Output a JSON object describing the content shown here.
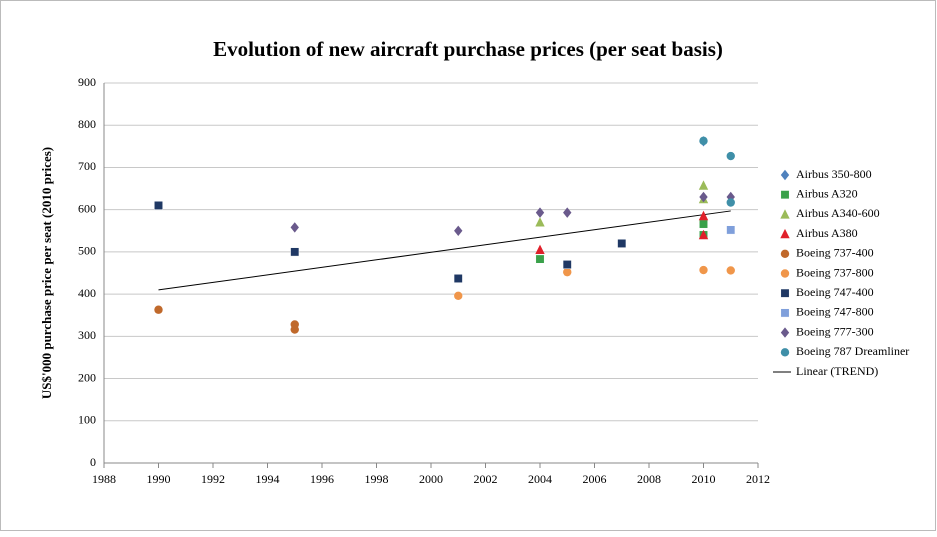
{
  "chart_data": {
    "type": "scatter",
    "title": "Evolution of new aircraft purchase prices (per seat basis)",
    "ylabel": "US$'000 purchase price per seat (2010 prices)",
    "xlim": [
      1988,
      2012
    ],
    "xticks": [
      1988,
      1990,
      1992,
      1994,
      1996,
      1998,
      2000,
      2002,
      2004,
      2006,
      2008,
      2010,
      2012
    ],
    "ylim": [
      0,
      900
    ],
    "yticks": [
      0,
      100,
      200,
      300,
      400,
      500,
      600,
      700,
      800,
      900
    ],
    "grid": true,
    "legend": "right",
    "series": [
      {
        "name": "Airbus 350-800",
        "color": "#4f81bd",
        "marker": "diamond",
        "x": [
          2010
        ],
        "values": [
          762
        ]
      },
      {
        "name": "Airbus A320",
        "color": "#3aa14a",
        "marker": "square",
        "x": [
          2004,
          2010,
          2010
        ],
        "values": [
          483,
          566,
          540
        ]
      },
      {
        "name": "Airbus A340-600",
        "color": "#9bbb59",
        "marker": "triangle",
        "x": [
          2004,
          2010,
          2010
        ],
        "values": [
          570,
          657,
          625
        ]
      },
      {
        "name": "Airbus A380",
        "color": "#e0202a",
        "marker": "triangle",
        "x": [
          2004,
          2010,
          2010
        ],
        "values": [
          505,
          585,
          540
        ]
      },
      {
        "name": "Boeing 737-400",
        "color": "#c0692b",
        "marker": "circle",
        "x": [
          1990,
          1995,
          1995
        ],
        "values": [
          363,
          328,
          316
        ]
      },
      {
        "name": "Boeing 737-800",
        "color": "#f0964a",
        "marker": "circle",
        "x": [
          2001,
          2005,
          2010,
          2011
        ],
        "values": [
          396,
          452,
          457,
          456
        ]
      },
      {
        "name": "Boeing 747-400",
        "color": "#1f3864",
        "marker": "square",
        "x": [
          1990,
          1995,
          2001,
          2005,
          2007
        ],
        "values": [
          610,
          500,
          437,
          470,
          520
        ]
      },
      {
        "name": "Boeing 747-800",
        "color": "#7f9fdb",
        "marker": "square",
        "x": [
          2011
        ],
        "values": [
          552
        ]
      },
      {
        "name": "Boeing 777-300",
        "color": "#6a5a8c",
        "marker": "diamond",
        "x": [
          1995,
          2001,
          2004,
          2005,
          2010,
          2011
        ],
        "values": [
          558,
          550,
          593,
          593,
          630,
          630
        ]
      },
      {
        "name": "Boeing 787 Dreamliner",
        "color": "#3f8fa8",
        "marker": "circle",
        "x": [
          2010,
          2011,
          2011
        ],
        "values": [
          763,
          727,
          617
        ]
      }
    ],
    "trend": {
      "name": "Linear (TREND)",
      "color": "#000000",
      "x": [
        1990,
        2011
      ],
      "values": [
        410,
        597
      ]
    }
  }
}
